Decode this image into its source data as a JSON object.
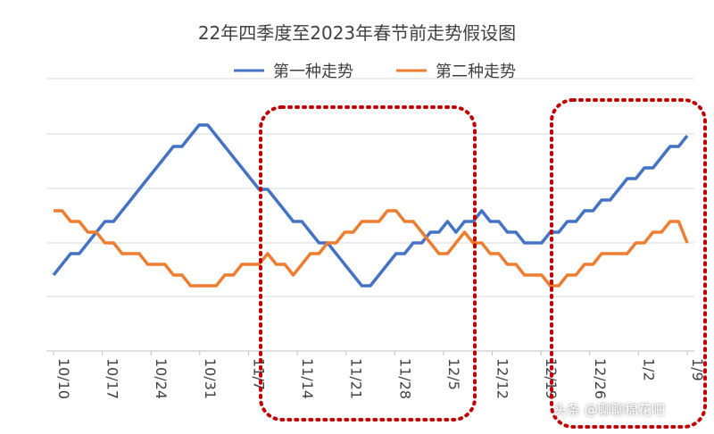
{
  "chart_data": {
    "type": "line",
    "title": "22年四季度至2023年春节前走势假设图",
    "x_ticks": [
      "10/10",
      "10/17",
      "10/24",
      "10/31",
      "11/7",
      "11/14",
      "11/21",
      "11/28",
      "12/5",
      "12/12",
      "12/19",
      "12/26",
      "1/2",
      "1/9"
    ],
    "legend_position": "top-center",
    "grid": true,
    "y_axis_labels_visible": false,
    "series": [
      {
        "name": "第一种走势",
        "color": "#4472C4",
        "values": [
          1.0,
          1.5,
          2.0,
          2.0,
          2.5,
          3.0,
          3.5,
          3.5,
          4.0,
          4.5,
          5.0,
          5.5,
          6.0,
          6.5,
          7.0,
          7.0,
          7.5,
          8.0,
          8.0,
          7.5,
          7.0,
          6.5,
          6.0,
          5.5,
          5.0,
          5.0,
          4.5,
          4.0,
          3.5,
          3.5,
          3.0,
          2.5,
          2.5,
          2.0,
          1.5,
          1.0,
          0.5,
          0.5,
          1.0,
          1.5,
          2.0,
          2.0,
          2.5,
          2.5,
          3.0,
          3.0,
          3.5,
          3.0,
          3.5,
          3.5,
          4.0,
          3.5,
          3.5,
          3.0,
          3.0,
          2.5,
          2.5,
          2.5,
          3.0,
          3.0,
          3.5,
          3.5,
          4.0,
          4.0,
          4.5,
          4.5,
          5.0,
          5.5,
          5.5,
          6.0,
          6.0,
          6.5,
          7.0,
          7.0,
          7.5
        ]
      },
      {
        "name": "第二种走势",
        "color": "#ED7D31",
        "values": [
          4.0,
          4.0,
          3.5,
          3.5,
          3.0,
          3.0,
          2.5,
          2.5,
          2.0,
          2.0,
          2.0,
          1.5,
          1.5,
          1.5,
          1.0,
          1.0,
          0.5,
          0.5,
          0.5,
          0.5,
          1.0,
          1.0,
          1.5,
          1.5,
          1.5,
          2.0,
          1.5,
          1.5,
          1.0,
          1.5,
          2.0,
          2.0,
          2.5,
          2.5,
          3.0,
          3.0,
          3.5,
          3.5,
          3.5,
          4.0,
          4.0,
          3.5,
          3.5,
          3.0,
          2.5,
          2.0,
          2.0,
          2.5,
          3.0,
          2.5,
          2.5,
          2.0,
          2.0,
          1.5,
          1.5,
          1.0,
          1.0,
          1.0,
          0.5,
          0.5,
          1.0,
          1.0,
          1.5,
          1.5,
          2.0,
          2.0,
          2.0,
          2.0,
          2.5,
          2.5,
          3.0,
          3.0,
          3.5,
          3.5,
          2.5
        ]
      }
    ]
  },
  "watermark": "头条 @聊聊棉花吧",
  "colors": {
    "highlight_box": "#C00000",
    "grid": "#D9D9D9"
  }
}
